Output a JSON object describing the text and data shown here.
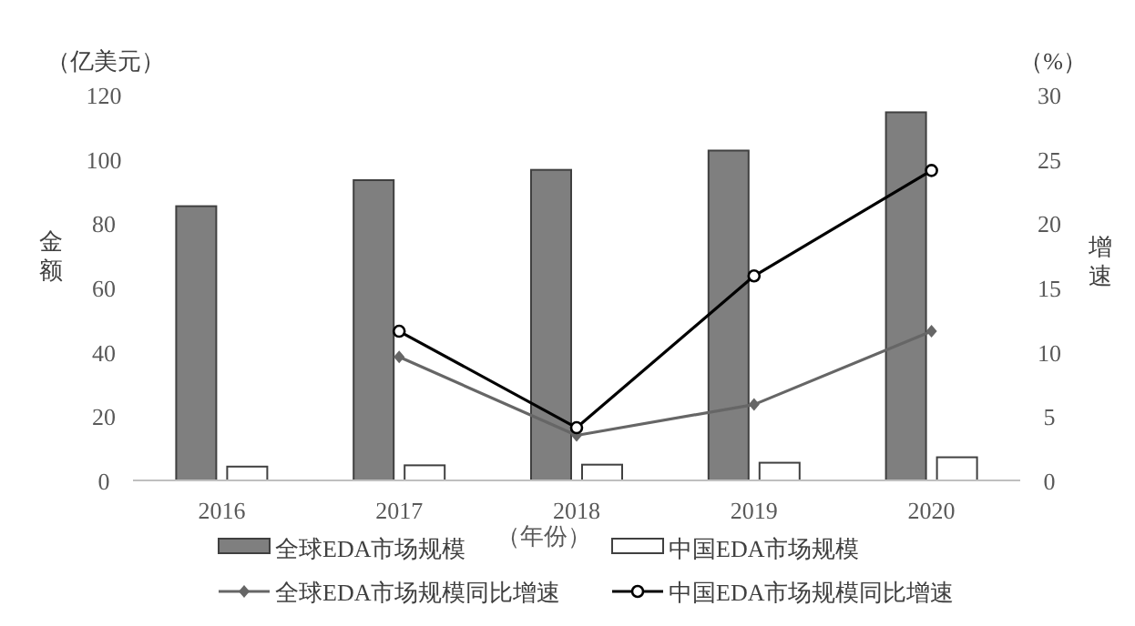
{
  "chart_data": {
    "type": "bar",
    "categories": [
      "2016",
      "2017",
      "2018",
      "2019",
      "2020"
    ],
    "xlabel": "（年份）",
    "ylabel": "金额",
    "y2label": "增速",
    "annotations": [
      "（亿美元）",
      "（%）"
    ],
    "ylim": [
      0,
      120
    ],
    "yticks": [
      0,
      20,
      40,
      60,
      80,
      100,
      120
    ],
    "y2lim": [
      0,
      30
    ],
    "y2ticks": [
      0,
      5,
      10,
      15,
      20,
      25,
      30
    ],
    "grid": false,
    "legend": "bottom",
    "series": [
      {
        "name": "全球EDA市场规模",
        "color": "#7f7f7f",
        "values": [
          85.3,
          93.4,
          96.6,
          102.6,
          114.5
        ]
      },
      {
        "name": "中国EDA市场规模",
        "color": "#ffffff",
        "values": [
          4.3,
          4.7,
          4.9,
          5.5,
          7.2
        ]
      },
      {
        "name": "全球EDA市场规模同比增速",
        "type": "line",
        "axis": "y2",
        "color": "#666666",
        "marker": "diamond",
        "values": [
          null,
          9.6,
          3.5,
          5.9,
          11.6
        ]
      },
      {
        "name": "中国EDA市场规模同比增速",
        "type": "line",
        "axis": "y2",
        "color": "#000000",
        "marker": "circle",
        "values": [
          null,
          11.6,
          4.1,
          15.9,
          24.1
        ]
      }
    ]
  }
}
